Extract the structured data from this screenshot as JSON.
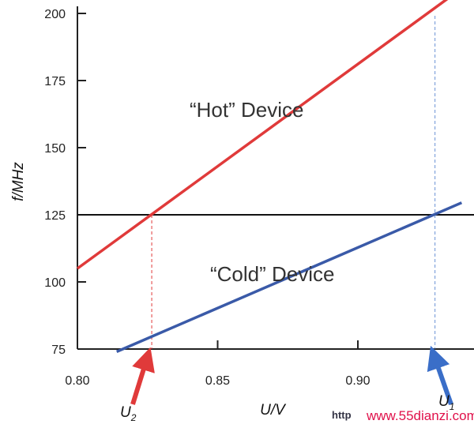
{
  "chart_data": {
    "type": "line",
    "xlabel": "U/V",
    "ylabel": "f/MHz",
    "xlim": [
      0.8,
      0.93
    ],
    "ylim": [
      75,
      205
    ],
    "x_ticks": [
      0.8,
      0.85,
      0.9
    ],
    "x_tick_labels": [
      "0.80",
      "0.85",
      "0.90"
    ],
    "y_ticks": [
      75,
      100,
      125,
      150,
      175,
      200
    ],
    "y_tick_labels": [
      "75",
      "100",
      "125",
      "150",
      "175",
      "200"
    ],
    "grid": false,
    "series": [
      {
        "label": "“Hot” Device",
        "color": "#e03a3a",
        "x": [
          0.8,
          0.932
        ],
        "y": [
          105,
          205.5
        ]
      },
      {
        "label": "“Cold” Device",
        "color": "#3a5aa8",
        "x": [
          0.814,
          0.937
        ],
        "y": [
          74,
          129.5
        ]
      }
    ],
    "reference_line": {
      "y": 125,
      "color": "#111111"
    },
    "markers": [
      {
        "label": "U",
        "subscript": "2",
        "x": 0.8265,
        "color": "#e03a3a"
      },
      {
        "label": "U",
        "subscript": "1",
        "x": 0.9275,
        "color": "#3a6ec8"
      }
    ]
  },
  "watermark": {
    "tag": "http",
    "url": "www.55dianzi.com"
  }
}
